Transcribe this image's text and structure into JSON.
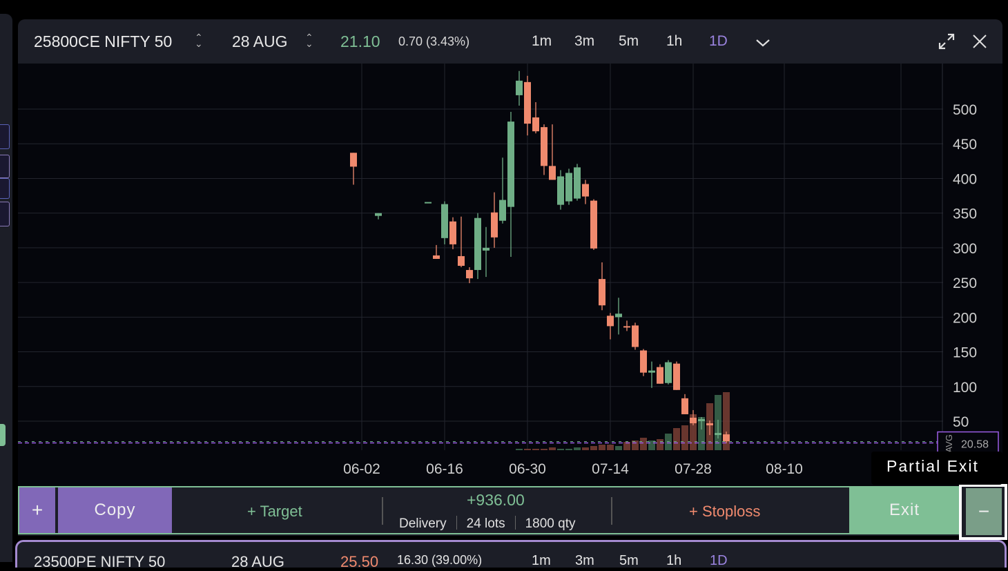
{
  "panel": {
    "symbol": "25800CE NIFTY 50",
    "expiry": "28 AUG",
    "ltp": "21.10",
    "change": "0.70 (3.43%)",
    "timeframes": [
      "1m",
      "3m",
      "5m",
      "1h",
      "1D"
    ],
    "active_timeframe": "1D",
    "icons": [
      "sort-updown-icon",
      "chevron-down-icon",
      "expand-icon",
      "close-icon"
    ]
  },
  "chart_data": {
    "type": "candlestick",
    "y_ticks": [
      50,
      100,
      150,
      200,
      250,
      300,
      350,
      400,
      450,
      500
    ],
    "ylim": [
      -10,
      560
    ],
    "x_ticks": [
      "06-02",
      "06-16",
      "06-30",
      "07-14",
      "07-28",
      "08-10"
    ],
    "avg_label": "AVG",
    "avg_price": "20.58",
    "avg_value": 20.58,
    "colors": {
      "up": "#6fae86",
      "down": "#f08a6e",
      "avg": "#9b5de5"
    },
    "candles": [
      {
        "d": "05-30",
        "o": 437,
        "h": 437,
        "l": 391,
        "c": 417
      },
      {
        "d": "06-04",
        "o": 346,
        "h": 350,
        "l": 341,
        "c": 350
      },
      {
        "d": "06-12",
        "o": 366,
        "h": 366,
        "l": 366,
        "c": 366
      },
      {
        "d": "06-13",
        "o": 289,
        "h": 304,
        "l": 284,
        "c": 284
      },
      {
        "d": "06-16",
        "o": 314,
        "h": 367,
        "l": 305,
        "c": 363
      },
      {
        "d": "06-17",
        "o": 338,
        "h": 344,
        "l": 298,
        "c": 305
      },
      {
        "d": "06-18",
        "o": 288,
        "h": 345,
        "l": 272,
        "c": 274
      },
      {
        "d": "06-19",
        "o": 268,
        "h": 272,
        "l": 249,
        "c": 256
      },
      {
        "d": "06-20",
        "o": 268,
        "h": 350,
        "l": 255,
        "c": 343
      },
      {
        "d": "06-23",
        "o": 296,
        "h": 330,
        "l": 258,
        "c": 300
      },
      {
        "d": "06-24",
        "o": 351,
        "h": 380,
        "l": 300,
        "c": 315
      },
      {
        "d": "06-25",
        "o": 339,
        "h": 430,
        "l": 335,
        "c": 369
      },
      {
        "d": "06-26",
        "o": 359,
        "h": 496,
        "l": 287,
        "c": 482
      },
      {
        "d": "06-27",
        "o": 520,
        "h": 555,
        "l": 505,
        "c": 541
      },
      {
        "d": "06-30",
        "o": 539,
        "h": 548,
        "l": 462,
        "c": 479
      },
      {
        "d": "07-01",
        "o": 488,
        "h": 510,
        "l": 465,
        "c": 468
      },
      {
        "d": "07-02",
        "o": 474,
        "h": 478,
        "l": 405,
        "c": 418
      },
      {
        "d": "07-03",
        "o": 418,
        "h": 478,
        "l": 398,
        "c": 398
      },
      {
        "d": "07-04",
        "o": 362,
        "h": 412,
        "l": 355,
        "c": 403
      },
      {
        "d": "07-07",
        "o": 367,
        "h": 414,
        "l": 362,
        "c": 408
      },
      {
        "d": "07-08",
        "o": 371,
        "h": 421,
        "l": 368,
        "c": 416
      },
      {
        "d": "07-09",
        "o": 392,
        "h": 398,
        "l": 363,
        "c": 374
      },
      {
        "d": "07-10",
        "o": 368,
        "h": 370,
        "l": 297,
        "c": 299
      },
      {
        "d": "07-11",
        "o": 255,
        "h": 279,
        "l": 210,
        "c": 217
      },
      {
        "d": "07-14",
        "o": 202,
        "h": 206,
        "l": 168,
        "c": 187
      },
      {
        "d": "07-15",
        "o": 200,
        "h": 228,
        "l": 175,
        "c": 205
      },
      {
        "d": "07-16",
        "o": 187,
        "h": 195,
        "l": 180,
        "c": 186
      },
      {
        "d": "07-17",
        "o": 188,
        "h": 192,
        "l": 153,
        "c": 157
      },
      {
        "d": "07-18",
        "o": 152,
        "h": 154,
        "l": 115,
        "c": 120
      },
      {
        "d": "07-21",
        "o": 120,
        "h": 136,
        "l": 98,
        "c": 123
      },
      {
        "d": "07-22",
        "o": 128,
        "h": 132,
        "l": 104,
        "c": 104
      },
      {
        "d": "07-23",
        "o": 105,
        "h": 138,
        "l": 103,
        "c": 135
      },
      {
        "d": "07-24",
        "o": 133,
        "h": 136,
        "l": 95,
        "c": 95
      },
      {
        "d": "07-25",
        "o": 83,
        "h": 89,
        "l": 60,
        "c": 60
      },
      {
        "d": "07-28",
        "o": 55,
        "h": 66,
        "l": 44,
        "c": 47
      },
      {
        "d": "07-29",
        "o": 50,
        "h": 56,
        "l": 38,
        "c": 53
      },
      {
        "d": "07-30",
        "o": 47,
        "h": 51,
        "l": 30,
        "c": 44
      },
      {
        "d": "07-31",
        "o": 30,
        "h": 52,
        "l": 25,
        "c": 33
      },
      {
        "d": "08-01",
        "o": 31,
        "h": 35,
        "l": 18,
        "c": 21
      }
    ],
    "volumes": [
      0,
      0,
      0,
      0,
      0,
      0,
      0,
      0,
      0,
      0,
      0,
      0,
      0,
      1,
      1,
      1,
      1,
      2,
      1,
      1,
      2,
      2,
      3,
      4,
      4,
      3,
      6,
      7,
      9,
      7,
      8,
      12,
      16,
      18,
      26,
      24,
      34,
      40,
      42
    ]
  },
  "actions": {
    "add": "+",
    "copy": "Copy",
    "target": "+ Target",
    "pnl": "+936.00",
    "product": "Delivery",
    "lots": "24 lots",
    "qty": "1800 qty",
    "stoploss": "+ Stoploss",
    "exit": "Exit",
    "partial_exit_symbol": "−",
    "tooltip": "Partial Exit"
  },
  "panel2": {
    "symbol": "23500PE NIFTY 50",
    "expiry": "28 AUG",
    "ltp": "25.50",
    "change": "16.30 (39.00%)",
    "timeframes": [
      "1m",
      "3m",
      "5m",
      "1h",
      "1D"
    ]
  }
}
